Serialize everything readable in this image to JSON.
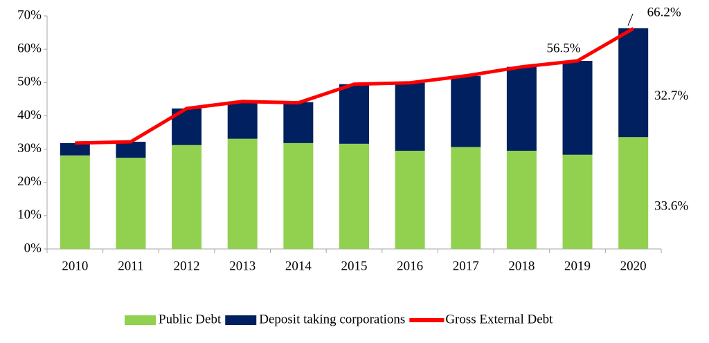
{
  "chart_data": {
    "type": "stacked-bar-line",
    "categories": [
      "2010",
      "2011",
      "2012",
      "2013",
      "2014",
      "2015",
      "2016",
      "2017",
      "2018",
      "2019",
      "2020"
    ],
    "series": [
      {
        "name": "Public Debt",
        "type": "bar",
        "color": "#92d050",
        "values": [
          28.1,
          27.4,
          31.2,
          33.1,
          31.8,
          31.6,
          29.5,
          30.6,
          29.5,
          28.3,
          33.6
        ],
        "value_labels": [
          null,
          null,
          null,
          null,
          null,
          null,
          null,
          null,
          null,
          null,
          "33.6%"
        ]
      },
      {
        "name": "Deposit taking corporations",
        "type": "bar",
        "color": "#002060",
        "values": [
          3.7,
          4.8,
          11.0,
          11.2,
          12.3,
          17.9,
          20.4,
          21.4,
          25.2,
          28.2,
          32.7
        ],
        "value_labels": [
          null,
          null,
          null,
          null,
          null,
          null,
          null,
          null,
          null,
          null,
          "32.7%"
        ]
      },
      {
        "name": "Gross External Debt",
        "type": "line",
        "color": "#ff0000",
        "values": [
          31.8,
          32.2,
          42.2,
          44.3,
          43.9,
          49.5,
          49.9,
          52.0,
          54.7,
          56.5,
          66.2
        ],
        "value_labels": [
          null,
          null,
          null,
          null,
          null,
          null,
          null,
          null,
          null,
          "56.5%",
          "66.2%"
        ]
      }
    ],
    "ylim": [
      0,
      70
    ],
    "yticks": [
      {
        "value": 0,
        "label": "0%"
      },
      {
        "value": 10,
        "label": "10%"
      },
      {
        "value": 20,
        "label": "20%"
      },
      {
        "value": 30,
        "label": "30%"
      },
      {
        "value": 40,
        "label": "40%"
      },
      {
        "value": 50,
        "label": "50%"
      },
      {
        "value": 60,
        "label": "60%"
      },
      {
        "value": 70,
        "label": "70%"
      }
    ],
    "grid": false,
    "legend": "bottom"
  }
}
